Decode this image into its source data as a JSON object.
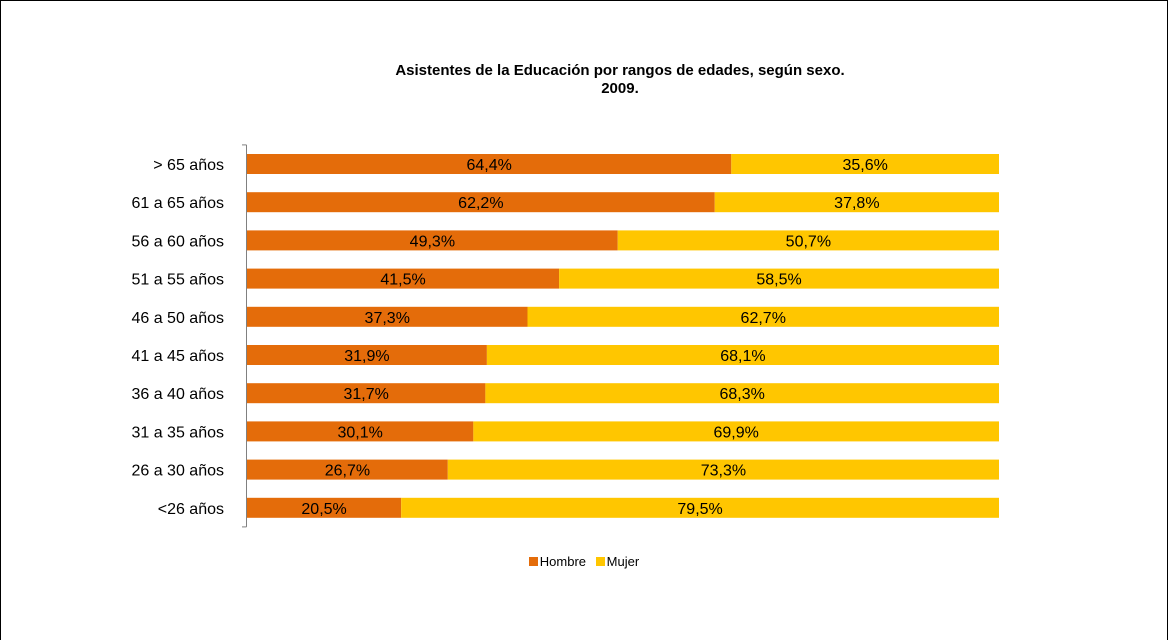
{
  "chart_data": {
    "type": "bar",
    "orientation": "horizontal",
    "stacked": "percent",
    "title": "Asistentes de la Educación por rangos de edades, según sexo.\n2009.",
    "xlabel": "",
    "ylabel": "",
    "xlim": [
      0,
      100
    ],
    "grid": false,
    "legend": "bottom",
    "categories": [
      "> 65 años",
      "61 a 65 años",
      "56 a 60 años",
      "51 a 55 años",
      "46 a 50 años",
      "41 a 45 años",
      "36 a 40 años",
      "31 a 35 años",
      "26 a 30 años",
      "<26 años"
    ],
    "series": [
      {
        "name": "Hombre",
        "color": "#E46C0A",
        "values": [
          64.4,
          62.2,
          49.3,
          41.5,
          37.3,
          31.9,
          31.7,
          30.1,
          26.7,
          20.5
        ],
        "labels": [
          "64,4%",
          "62,2%",
          "49,3%",
          "41,5%",
          "37,3%",
          "31,9%",
          "31,7%",
          "30,1%",
          "26,7%",
          "20,5%"
        ]
      },
      {
        "name": "Mujer",
        "color": "#FFC600",
        "values": [
          35.6,
          37.8,
          50.7,
          58.5,
          62.7,
          68.1,
          68.3,
          69.9,
          73.3,
          79.5
        ],
        "labels": [
          "35,6%",
          "37,8%",
          "50,7%",
          "58,5%",
          "62,7%",
          "68,1%",
          "68,3%",
          "69,9%",
          "73,3%",
          "79,5%"
        ]
      }
    ]
  }
}
